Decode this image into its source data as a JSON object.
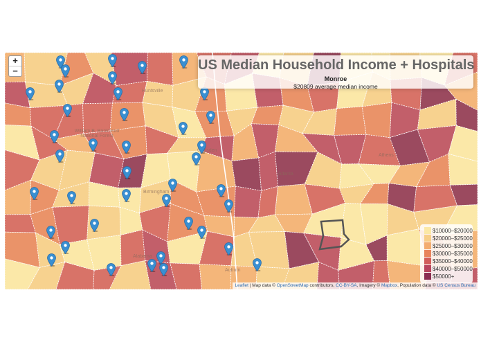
{
  "map": {
    "title": "US Median Household Income + Hospitals",
    "hover_county": "Monroe",
    "hover_income": "$20809 average median income",
    "zoom_in_label": "+",
    "zoom_out_label": "−",
    "legend": [
      {
        "label": "$10000–$20000",
        "color": "#fbe8a6"
      },
      {
        "label": "$20000–$25000",
        "color": "#f7ce88"
      },
      {
        "label": "$25000–$30000",
        "color": "#f3ad70"
      },
      {
        "label": "$30000–$35000",
        "color": "#e8845c"
      },
      {
        "label": "$35000–$40000",
        "color": "#d25e5a"
      },
      {
        "label": "$40000–$50000",
        "color": "#b8465d"
      },
      {
        "label": "$50000+",
        "color": "#8b2e50"
      }
    ],
    "place_labels": [
      "Huntsville",
      "William B. Bankhead National Forest",
      "Gadsden",
      "Birmingham",
      "Atlanta",
      "Athens",
      "Alabama",
      "Auburn"
    ],
    "attribution": {
      "leaflet": "Leaflet",
      "text1": " | Map data © ",
      "osm": "OpenStreetMap",
      "text2": " contributors, ",
      "ccbysa": "CC-BY-SA",
      "text3": ", Imagery © ",
      "mapbox": "Mapbox",
      "text4": ", Population data © ",
      "census": "US Census Bureau"
    }
  }
}
